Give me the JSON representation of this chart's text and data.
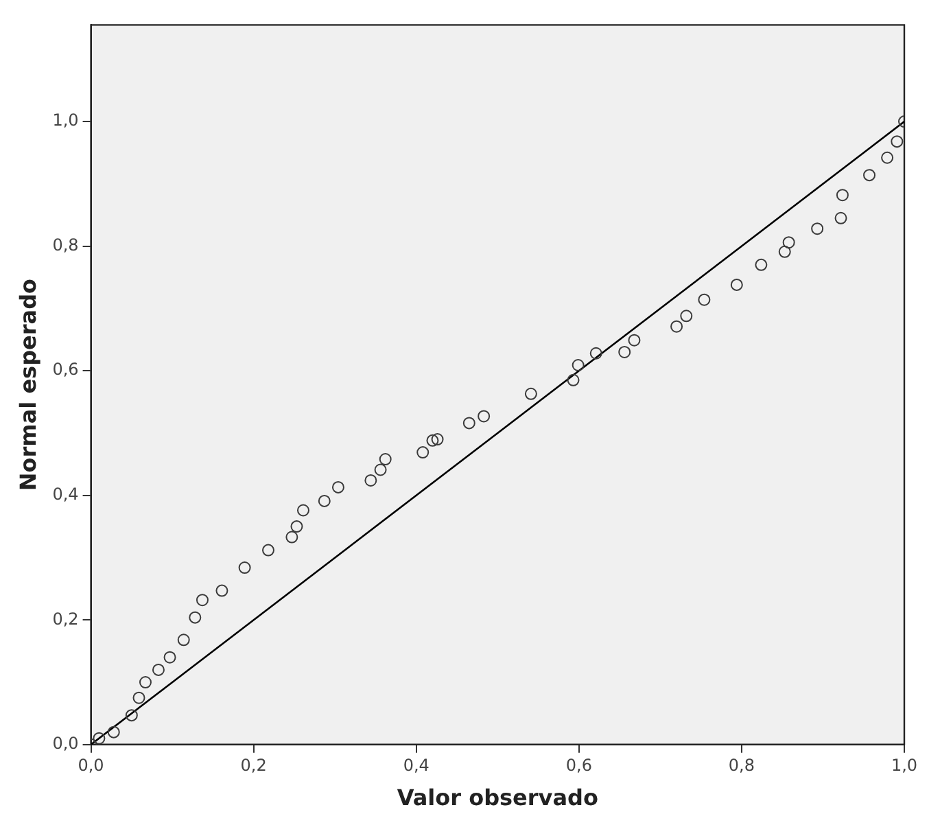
{
  "chart_data": {
    "type": "scatter",
    "xlabel": "Valor observado",
    "ylabel": "Normal esperado",
    "xlim": [
      0,
      1
    ],
    "ylim": [
      0,
      1.155
    ],
    "xticks": [
      {
        "value": 0,
        "label": "0,0"
      },
      {
        "value": 0.2,
        "label": "0,2"
      },
      {
        "value": 0.4,
        "label": "0,4"
      },
      {
        "value": 0.6,
        "label": "0,6"
      },
      {
        "value": 0.8,
        "label": "0,8"
      },
      {
        "value": 1,
        "label": "1,0"
      }
    ],
    "yticks": [
      {
        "value": 0,
        "label": "0,0"
      },
      {
        "value": 0.2,
        "label": "0,2"
      },
      {
        "value": 0.4,
        "label": "0,4"
      },
      {
        "value": 0.6,
        "label": "0,6"
      },
      {
        "value": 0.8,
        "label": "0,8"
      },
      {
        "value": 1,
        "label": "1,0"
      }
    ],
    "grid": false,
    "legend": false,
    "series": [
      {
        "marker": "circle",
        "color": "#3a3a3a",
        "x": [
          0,
          0.01,
          0.028,
          0.05,
          0.059,
          0.067,
          0.083,
          0.097,
          0.114,
          0.128,
          0.137,
          0.161,
          0.189,
          0.218,
          0.247,
          0.253,
          0.261,
          0.287,
          0.304,
          0.344,
          0.356,
          0.362,
          0.408,
          0.42,
          0.426,
          0.465,
          0.483,
          0.541,
          0.593,
          0.599,
          0.621,
          0.656,
          0.668,
          0.72,
          0.732,
          0.754,
          0.794,
          0.824,
          0.853,
          0.858,
          0.893,
          0.922,
          0.924,
          0.957,
          0.979,
          0.991,
          1
        ],
        "values": [
          0,
          0.01,
          0.02,
          0.047,
          0.075,
          0.1,
          0.12,
          0.14,
          0.168,
          0.204,
          0.232,
          0.247,
          0.284,
          0.312,
          0.333,
          0.35,
          0.376,
          0.391,
          0.413,
          0.424,
          0.441,
          0.458,
          0.469,
          0.488,
          0.49,
          0.516,
          0.527,
          0.563,
          0.585,
          0.609,
          0.628,
          0.63,
          0.649,
          0.671,
          0.688,
          0.714,
          0.738,
          0.77,
          0.791,
          0.806,
          0.828,
          0.845,
          0.882,
          0.914,
          0.942,
          0.968,
          1
        ]
      },
      {
        "type": "line",
        "marker": "none",
        "color": "#000000",
        "x": [
          0,
          1
        ],
        "values": [
          0,
          1
        ]
      }
    ]
  }
}
